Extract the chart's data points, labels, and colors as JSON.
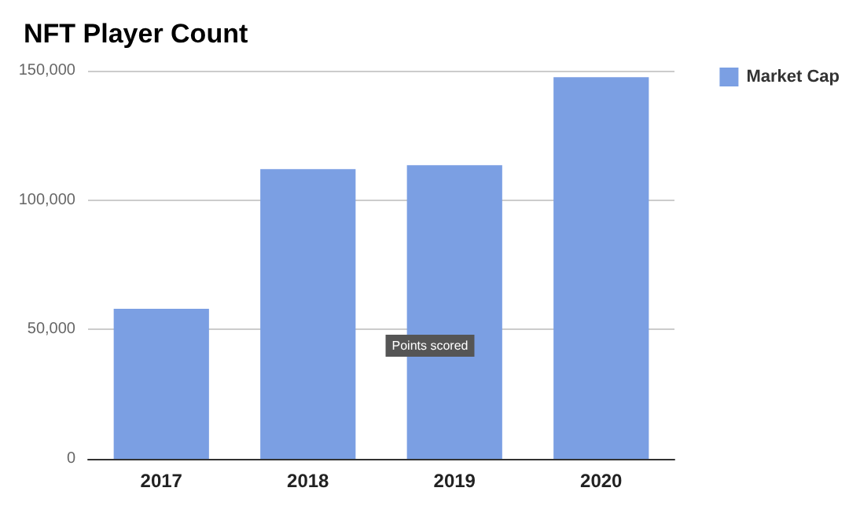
{
  "chart_data": {
    "type": "bar",
    "title": "NFT Player Count",
    "categories": [
      "2017",
      "2018",
      "2019",
      "2020"
    ],
    "series": [
      {
        "name": "Market Cap",
        "color": "#7b9fe3",
        "values": [
          58000,
          112000,
          113500,
          147500
        ]
      }
    ],
    "ylim": [
      0,
      150000
    ],
    "yticks": [
      0,
      {
        "value": 50000,
        "label": "50,000"
      },
      {
        "value": 100000,
        "label": "100,000"
      },
      {
        "value": 150000,
        "label": "150,000"
      }
    ],
    "grid": "y",
    "legend": "top right",
    "annotations": [
      "Points scored"
    ]
  }
}
